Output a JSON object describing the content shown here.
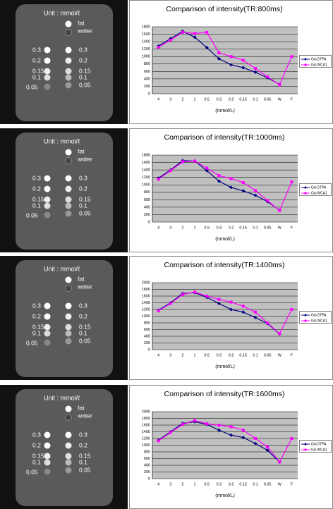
{
  "images": [
    {
      "unit": "Unit : mmol/ℓ",
      "fat": "fat",
      "water": "water",
      "left": [
        "0.3",
        "0.2",
        "0.15",
        "0.1",
        "0.05"
      ],
      "right": [
        "0.3",
        "0.2",
        "0.15",
        "0.1",
        "0.05"
      ]
    },
    {
      "unit": "Unit : mmol/ℓ",
      "fat": "fat",
      "water": "water",
      "left": [
        "0.3",
        "0.2",
        "0.15",
        "0.1",
        "0.05"
      ],
      "right": [
        "0.3",
        "0.2",
        "0.15",
        "0.1",
        "0.05"
      ]
    },
    {
      "unit": "Unit : mmol/ℓ",
      "fat": "fat",
      "water": "water",
      "left": [
        "0.3",
        "0.2",
        "0.15",
        "0.1",
        "0.05"
      ],
      "right": [
        "0.3",
        "0.2",
        "0.15",
        "0.1",
        "0.05"
      ]
    },
    {
      "unit": "Unit : mmol/ℓ",
      "fat": "fat",
      "water": "water",
      "left": [
        "0.3",
        "0.2",
        "0.15",
        "0.1",
        "0.05"
      ],
      "right": [
        "0.3",
        "0.2",
        "0.15",
        "0.1",
        "0.05"
      ]
    }
  ],
  "chart_data": [
    {
      "type": "line",
      "title": "Comparison of intensity(TR:800ms)",
      "x_label": "(mmol/L)",
      "categories": [
        "4",
        "3",
        "2",
        "1",
        "0.5",
        "0.3",
        "0.2",
        "0.15",
        "0.1",
        "0.05",
        "W",
        "F"
      ],
      "series": [
        {
          "name": "Gd-DTPA",
          "color": "#000080",
          "values": [
            1280,
            1480,
            1680,
            1520,
            1240,
            940,
            780,
            700,
            580,
            430,
            250,
            null
          ]
        },
        {
          "name": "Gd-WCA1",
          "color": "#ff00ff",
          "values": [
            1250,
            1440,
            1650,
            1620,
            1650,
            1100,
            1000,
            900,
            680,
            460,
            240,
            1000
          ]
        }
      ],
      "ylim": [
        0,
        1800
      ],
      "yticks": [
        0,
        200,
        400,
        600,
        800,
        1000,
        1200,
        1400,
        1600,
        1800
      ],
      "grid": true
    },
    {
      "type": "line",
      "title": "Comparison of intensity(TR:1000ms)",
      "x_label": "(mmol/L)",
      "categories": [
        "4",
        "3",
        "2",
        "1",
        "0.5",
        "0.3",
        "0.2",
        "0.15",
        "0.1",
        "0.05",
        "W",
        "F"
      ],
      "series": [
        {
          "name": "Gd-DTPA",
          "color": "#000080",
          "values": [
            1180,
            1400,
            1650,
            1640,
            1380,
            1100,
            930,
            840,
            720,
            550,
            320,
            null
          ]
        },
        {
          "name": "Gd-WCA1",
          "color": "#ff00ff",
          "values": [
            1150,
            1380,
            1620,
            1640,
            1450,
            1250,
            1170,
            1060,
            850,
            580,
            310,
            1080
          ]
        }
      ],
      "ylim": [
        0,
        1800
      ],
      "yticks": [
        0,
        200,
        400,
        600,
        800,
        1000,
        1200,
        1400,
        1600,
        1800
      ],
      "grid": true
    },
    {
      "type": "line",
      "title": "Comparison of intensity(TR:1400ms)",
      "x_label": "(mmol/L)",
      "categories": [
        "4",
        "3",
        "2",
        "1",
        "0.5",
        "0.3",
        "0.2",
        "0.15",
        "0.1",
        "0.05",
        "W",
        "F"
      ],
      "series": [
        {
          "name": "Gd-DTPA",
          "color": "#000080",
          "values": [
            1180,
            1400,
            1680,
            1700,
            1560,
            1380,
            1200,
            1120,
            960,
            780,
            470,
            null
          ]
        },
        {
          "name": "Gd-WCA1",
          "color": "#ff00ff",
          "values": [
            1160,
            1380,
            1650,
            1720,
            1600,
            1500,
            1420,
            1300,
            1120,
            800,
            480,
            1200
          ]
        }
      ],
      "ylim": [
        0,
        2000
      ],
      "yticks": [
        0,
        200,
        400,
        600,
        800,
        1000,
        1200,
        1400,
        1600,
        1800,
        2000
      ],
      "grid": true
    },
    {
      "type": "line",
      "title": "Comparison of intensity(TR:1600ms)",
      "x_label": "(mmol/L)",
      "categories": [
        "4",
        "3",
        "2",
        "1",
        "0.5",
        "0.3",
        "0.2",
        "0.15",
        "0.1",
        "0.05",
        "W",
        "F"
      ],
      "series": [
        {
          "name": "Gd-DTPA",
          "color": "#000080",
          "values": [
            1150,
            1400,
            1650,
            1700,
            1620,
            1450,
            1300,
            1230,
            1050,
            850,
            500,
            null
          ]
        },
        {
          "name": "Gd-WCA1",
          "color": "#ff00ff",
          "values": [
            1130,
            1380,
            1620,
            1740,
            1640,
            1600,
            1550,
            1450,
            1200,
            950,
            500,
            1200
          ]
        }
      ],
      "ylim": [
        0,
        2000
      ],
      "yticks": [
        0,
        200,
        400,
        600,
        800,
        1000,
        1200,
        1400,
        1600,
        1800,
        2000
      ],
      "grid": true
    }
  ]
}
